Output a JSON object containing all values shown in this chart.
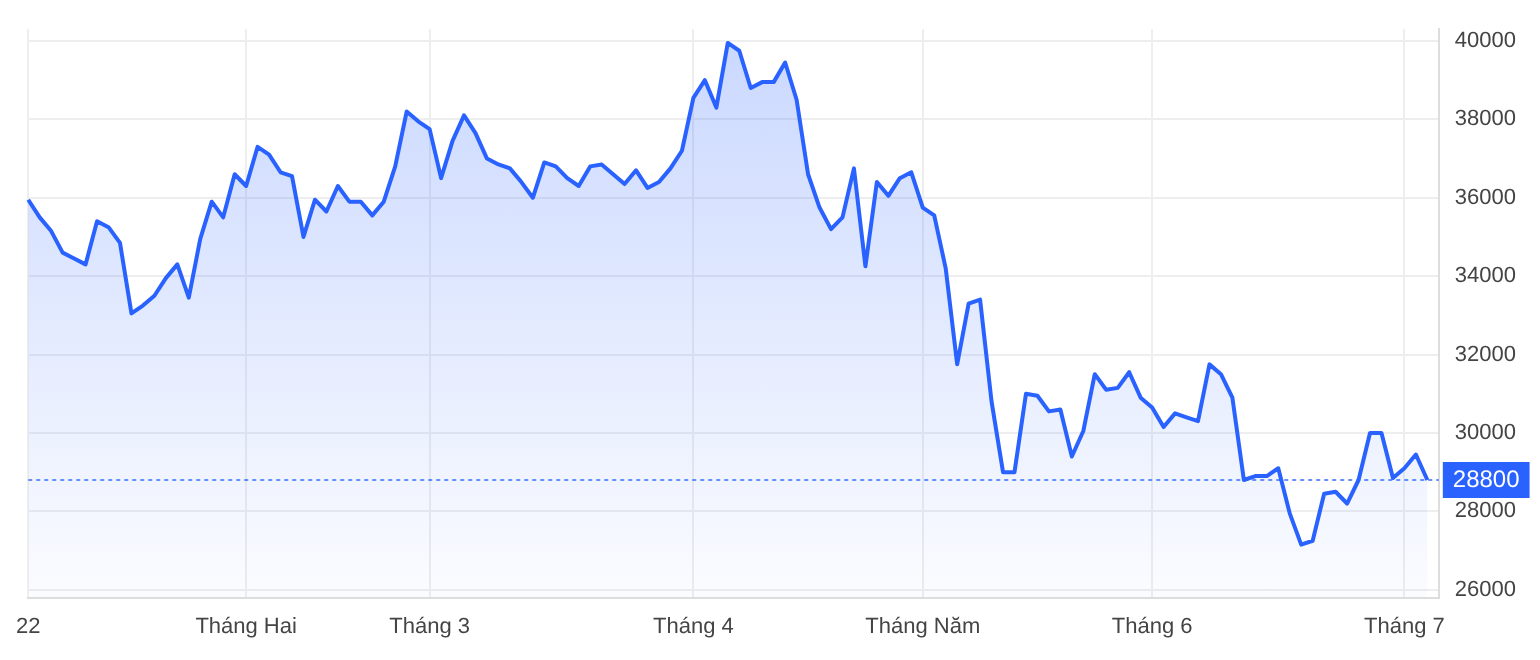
{
  "chart_data": {
    "type": "area",
    "color": "#2962ff",
    "categories": [
      "22",
      null,
      null,
      null,
      null,
      null,
      null,
      null,
      null,
      null,
      null,
      null,
      null,
      null,
      null,
      null,
      null,
      null,
      null,
      "Tháng Hai",
      null,
      null,
      null,
      null,
      null,
      null,
      null,
      null,
      null,
      null,
      null,
      null,
      null,
      null,
      null,
      "Tháng 3",
      null,
      null,
      null,
      null,
      null,
      null,
      null,
      null,
      null,
      null,
      null,
      null,
      null,
      null,
      null,
      null,
      null,
      null,
      null,
      null,
      null,
      null,
      "Tháng 4",
      null,
      null,
      null,
      null,
      null,
      null,
      null,
      null,
      null,
      null,
      null,
      null,
      null,
      null,
      null,
      null,
      null,
      null,
      null,
      "Tháng Năm",
      null,
      null,
      null,
      null,
      null,
      null,
      null,
      null,
      null,
      null,
      null,
      null,
      null,
      null,
      null,
      null,
      null,
      null,
      null,
      "Tháng 6",
      null,
      null,
      null,
      null,
      null,
      null,
      null,
      null,
      null,
      null,
      null,
      null,
      null,
      null,
      null,
      null,
      null,
      null,
      null,
      null,
      null,
      "Tháng 7",
      null,
      null,
      null
    ],
    "values": [
      35950,
      35500,
      35150,
      34600,
      34450,
      34300,
      35400,
      35250,
      34850,
      33050,
      33250,
      33500,
      33950,
      34300,
      33450,
      34950,
      35900,
      35500,
      36600,
      36300,
      37300,
      37100,
      36650,
      36550,
      35000,
      35950,
      35650,
      36300,
      35900,
      35900,
      35550,
      35900,
      36800,
      38200,
      37950,
      37750,
      36500,
      37450,
      38100,
      37650,
      37000,
      36850,
      36750,
      36400,
      36000,
      36900,
      36800,
      36500,
      36300,
      36800,
      36850,
      36600,
      36350,
      36700,
      36250,
      36400,
      36750,
      37200,
      38550,
      39000,
      38300,
      39950,
      39750,
      38800,
      38950,
      38950,
      39450,
      38500,
      36600,
      35750,
      35200,
      35500,
      36750,
      34250,
      36400,
      36050,
      36500,
      36650,
      35750,
      35550,
      34200,
      31750,
      33300,
      33400,
      30800,
      29000,
      29000,
      31000,
      30950,
      30550,
      30600,
      29400,
      30050,
      31500,
      31100,
      31150,
      31550,
      30900,
      30650,
      30150,
      30500,
      30400,
      30300,
      31750,
      31500,
      30900,
      28800,
      28900,
      28900,
      29100,
      27950,
      27150,
      27250,
      28450,
      28500,
      28200,
      28800,
      30000,
      30000,
      28850,
      29100,
      29450,
      28800,
      null
    ],
    "ylim": [
      25800,
      40300
    ],
    "yticks": [
      26000,
      28000,
      30000,
      32000,
      34000,
      36000,
      38000,
      40000
    ],
    "grid": true,
    "legend": false,
    "marker": "none",
    "line_style": "solid",
    "ref_lines": [
      {
        "axis": "y",
        "value": 28800,
        "label": "28800",
        "color": "#2962ff",
        "line_style": "dotted"
      }
    ]
  }
}
